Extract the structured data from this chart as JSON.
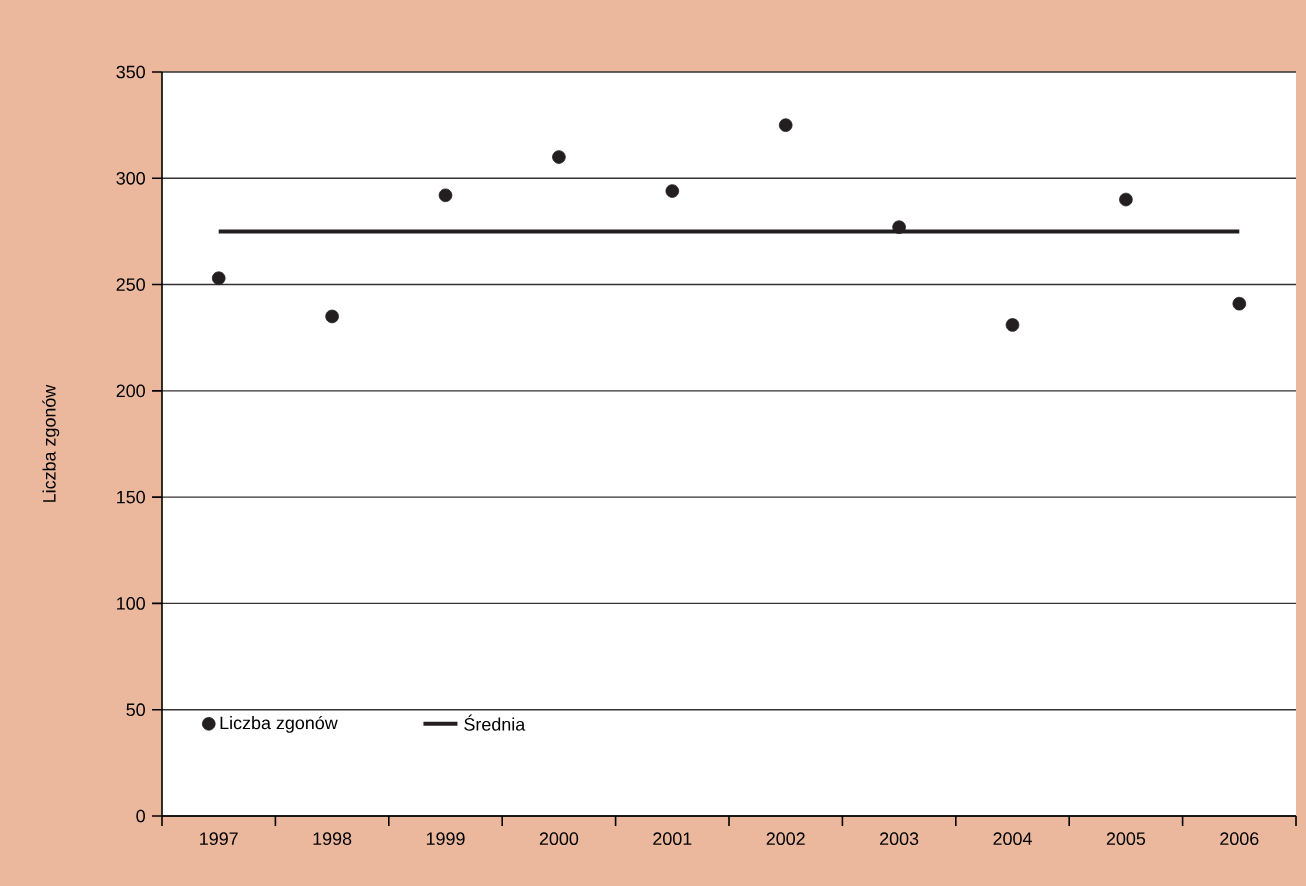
{
  "chart_data": {
    "type": "scatter",
    "ylabel": "Liczba zgonów",
    "categories": [
      "1997",
      "1998",
      "1999",
      "2000",
      "2001",
      "2002",
      "2003",
      "2004",
      "2005",
      "2006"
    ],
    "series": [
      {
        "name": "Liczba zgonów",
        "color": "#231f20",
        "marker": "circle",
        "values": [
          253,
          235,
          292,
          310,
          294,
          325,
          277,
          231,
          290,
          241
        ]
      },
      {
        "name": "Średnia",
        "type": "line",
        "color": "#231f20",
        "marker": "none",
        "line_style": "solid",
        "values": [
          275,
          275,
          275,
          275,
          275,
          275,
          275,
          275,
          275,
          275
        ]
      }
    ],
    "ylim": [
      0,
      350
    ],
    "yticks": [
      0,
      50,
      100,
      150,
      200,
      250,
      300,
      350
    ],
    "grid": "y",
    "legend": "bottom left"
  }
}
